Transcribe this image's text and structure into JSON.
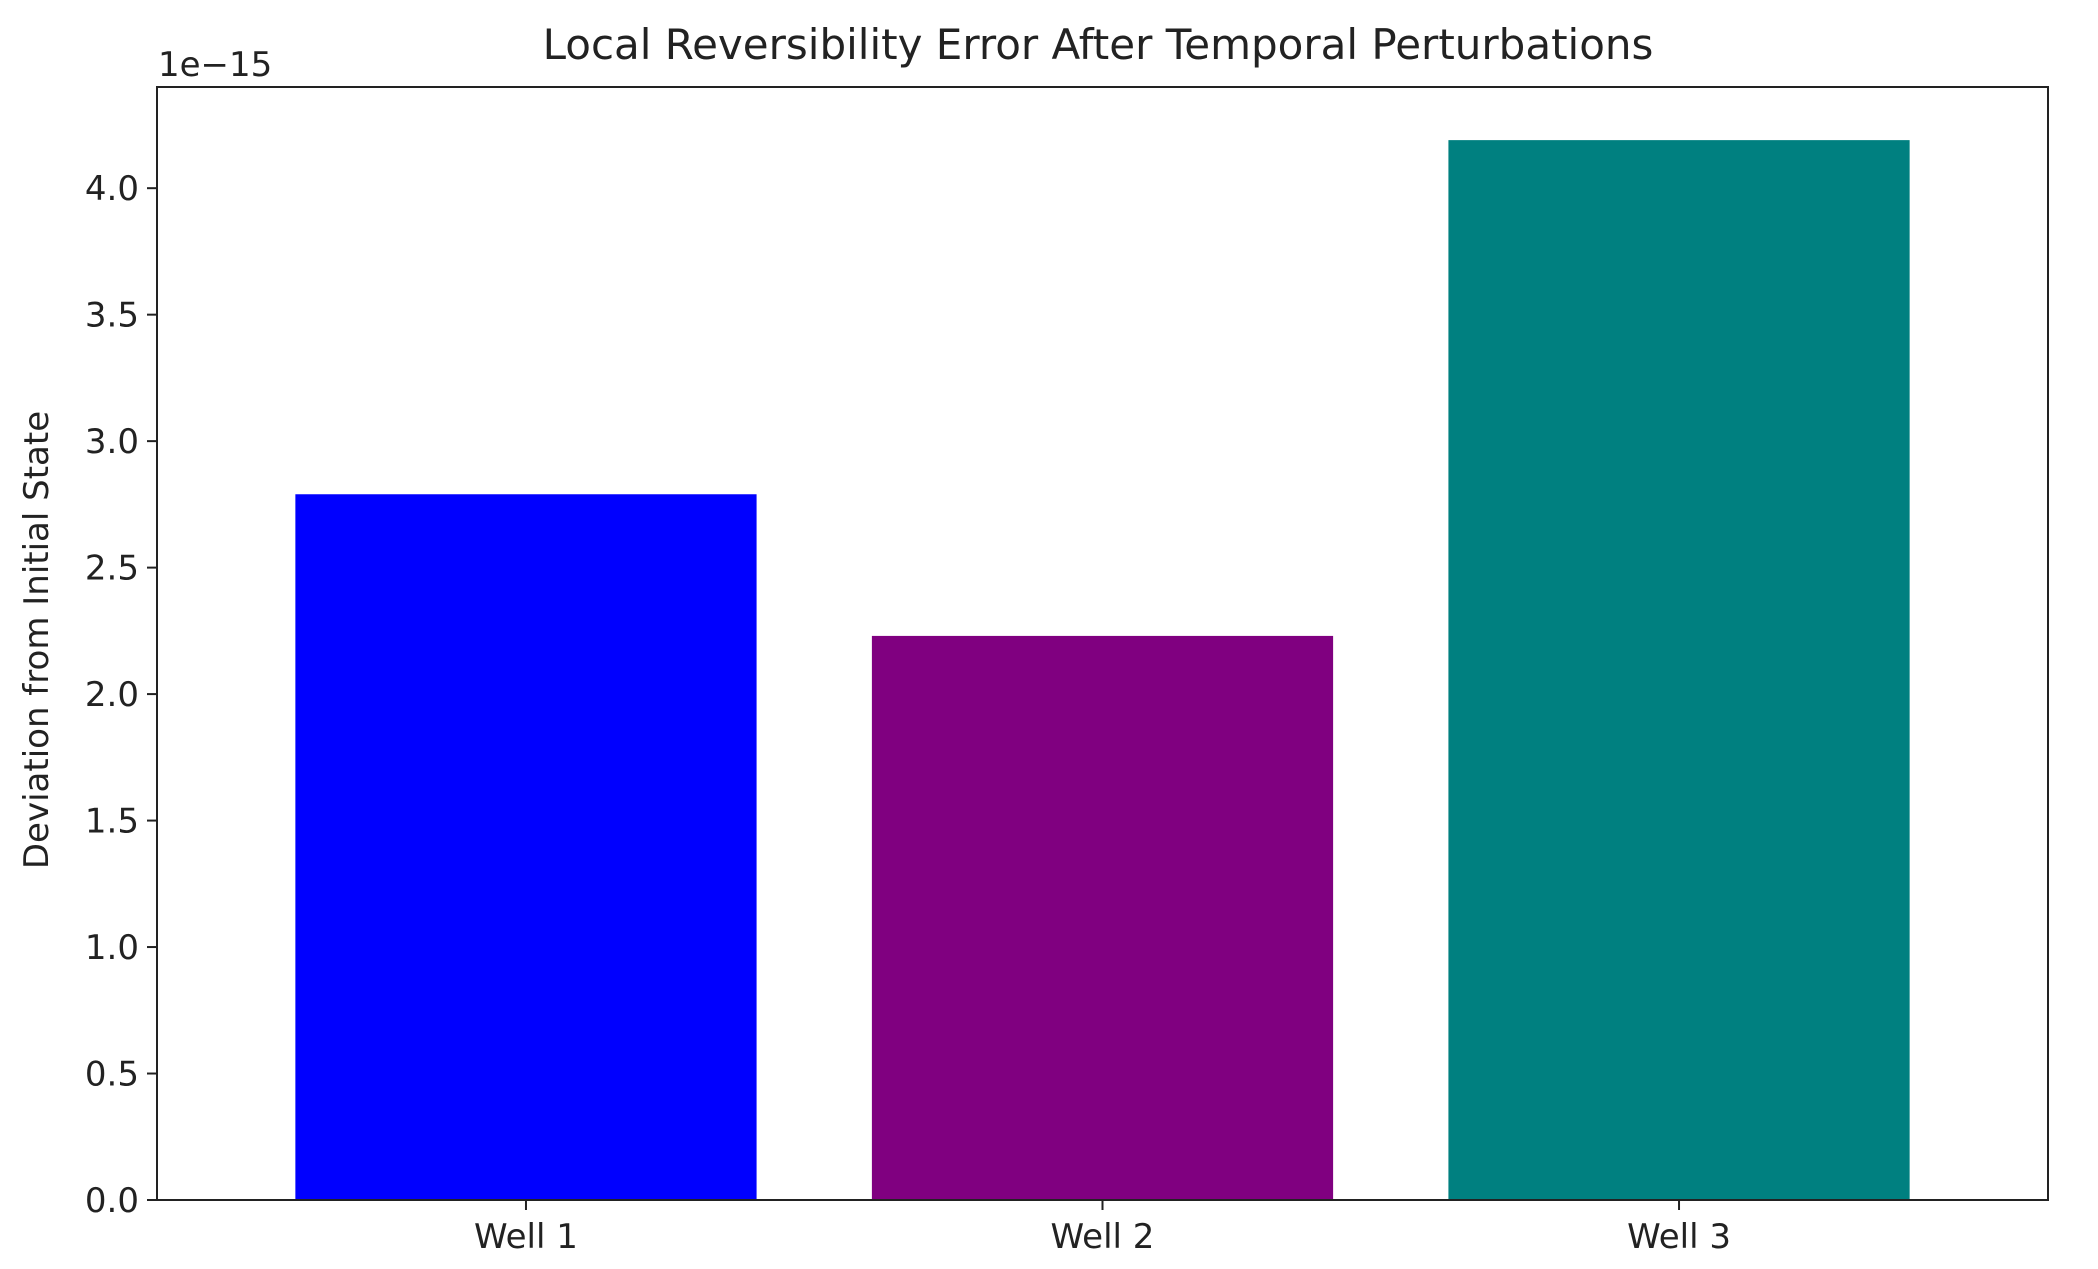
{
  "chart_data": {
    "type": "bar",
    "title": "Local Reversibility Error After Temporal Perturbations",
    "xlabel": "",
    "ylabel": "Deviation from Initial State",
    "offset_label": "1e−15",
    "scale": 1e-15,
    "categories": [
      "Well 1",
      "Well 2",
      "Well 3"
    ],
    "values": [
      2.79e-15,
      2.23e-15,
      4.19e-15
    ],
    "colors": [
      "#0000ff",
      "#800080",
      "#008080"
    ],
    "ylim": [
      0,
      4.4e-15
    ],
    "yticks": [
      0.0,
      0.5,
      1.0,
      1.5,
      2.0,
      2.5,
      3.0,
      3.5,
      4.0
    ],
    "ytick_labels": [
      "0.0",
      "0.5",
      "1.0",
      "1.5",
      "2.0",
      "2.5",
      "3.0",
      "3.5",
      "4.0"
    ],
    "grid": false,
    "legend": "none"
  }
}
